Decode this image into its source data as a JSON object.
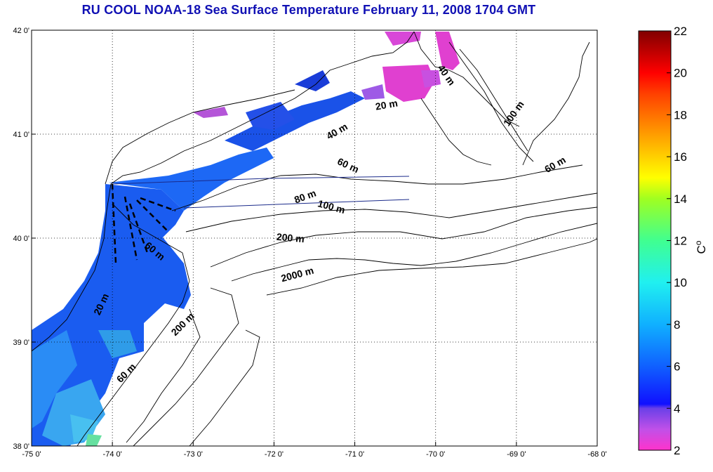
{
  "title": "RU COOL  NOAA-18 Sea Surface Temperature February 11, 2008 1704 GMT",
  "map": {
    "lon_range": [
      -75,
      -68
    ],
    "lat_range": [
      38,
      42
    ],
    "lon_ticks": [
      {
        "v": -75,
        "label": "-75 0'"
      },
      {
        "v": -74,
        "label": "-74 0'"
      },
      {
        "v": -73,
        "label": "-73 0'"
      },
      {
        "v": -72,
        "label": "-72 0'"
      },
      {
        "v": -71,
        "label": "-71 0'"
      },
      {
        "v": -70,
        "label": "-70 0'"
      },
      {
        "v": -69,
        "label": "-69 0'"
      },
      {
        "v": -68,
        "label": "-68 0'"
      }
    ],
    "lat_ticks": [
      {
        "v": 38,
        "label": "38 0'"
      },
      {
        "v": 39,
        "label": "39 0'"
      },
      {
        "v": 40,
        "label": "40 0'"
      },
      {
        "v": 41,
        "label": "41 0'"
      },
      {
        "v": 42,
        "label": "42 0'"
      }
    ],
    "isobath_labels": [
      {
        "text": "40 m",
        "lon": -69.9,
        "lat": 41.55,
        "rot": 55
      },
      {
        "text": "100 m",
        "lon": -69.0,
        "lat": 41.18,
        "rot": -55
      },
      {
        "text": "20 m",
        "lon": -70.6,
        "lat": 41.25,
        "rot": -10
      },
      {
        "text": "40 m",
        "lon": -71.2,
        "lat": 41.0,
        "rot": -30
      },
      {
        "text": "60 m",
        "lon": -71.1,
        "lat": 40.67,
        "rot": 25
      },
      {
        "text": "60 m",
        "lon": -68.5,
        "lat": 40.68,
        "rot": -30
      },
      {
        "text": "80 m",
        "lon": -71.6,
        "lat": 40.37,
        "rot": -20
      },
      {
        "text": "100 m",
        "lon": -71.3,
        "lat": 40.27,
        "rot": 15
      },
      {
        "text": "200 m",
        "lon": -71.8,
        "lat": 39.97,
        "rot": 5
      },
      {
        "text": "2000 m",
        "lon": -71.7,
        "lat": 39.62,
        "rot": -15
      },
      {
        "text": "60 m",
        "lon": -73.5,
        "lat": 39.85,
        "rot": 40
      },
      {
        "text": "20 m",
        "lon": -74.1,
        "lat": 39.35,
        "rot": -65
      },
      {
        "text": "200 m",
        "lon": -73.1,
        "lat": 39.15,
        "rot": -45
      },
      {
        "text": "60 m",
        "lon": -73.8,
        "lat": 38.68,
        "rot": -45
      }
    ]
  },
  "colorbar": {
    "min": 2,
    "max": 22,
    "ticks": [
      {
        "v": 22,
        "label": "22"
      },
      {
        "v": 20,
        "label": "20"
      },
      {
        "v": 18,
        "label": "18"
      },
      {
        "v": 16,
        "label": "16"
      },
      {
        "v": 14,
        "label": "14"
      },
      {
        "v": 12,
        "label": "12"
      },
      {
        "v": 10,
        "label": "10"
      },
      {
        "v": 8,
        "label": "8"
      },
      {
        "v": 6,
        "label": "6"
      },
      {
        "v": 4,
        "label": "4"
      },
      {
        "v": 2,
        "label": "2"
      }
    ],
    "unit_label": "C",
    "unit_sup": "o",
    "stops": [
      {
        "v": 2,
        "color": "#ff33cc"
      },
      {
        "v": 3,
        "color": "#c050e8"
      },
      {
        "v": 4,
        "color": "#6a40e8"
      },
      {
        "v": 4.2,
        "color": "#1010ff"
      },
      {
        "v": 6,
        "color": "#1060ff"
      },
      {
        "v": 8,
        "color": "#10b0ff"
      },
      {
        "v": 10,
        "color": "#20f0f0"
      },
      {
        "v": 12,
        "color": "#40ff90"
      },
      {
        "v": 14,
        "color": "#a0ff20"
      },
      {
        "v": 15,
        "color": "#ffff00"
      },
      {
        "v": 17,
        "color": "#ffa000"
      },
      {
        "v": 19,
        "color": "#ff4000"
      },
      {
        "v": 20,
        "color": "#ff0000"
      },
      {
        "v": 22,
        "color": "#800000"
      }
    ]
  }
}
